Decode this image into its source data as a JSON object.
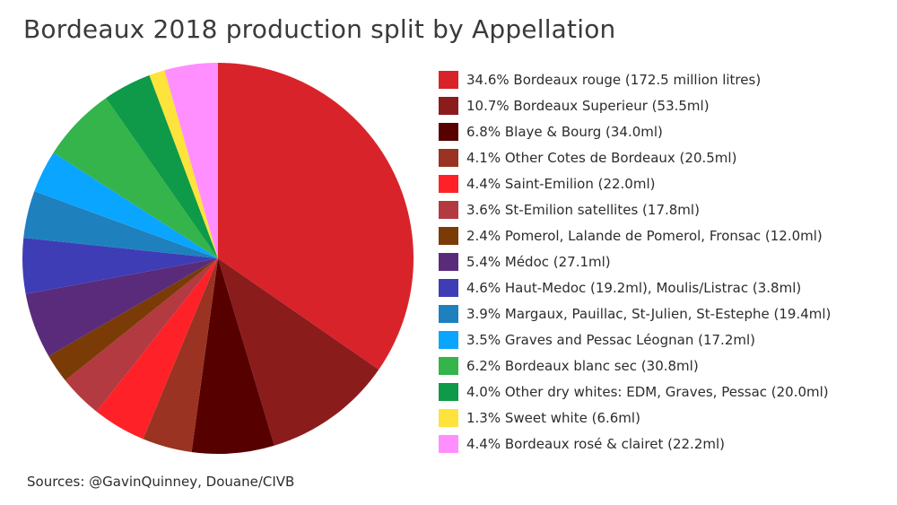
{
  "chart_data": {
    "type": "pie",
    "title": "Bordeaux 2018 production split by Appellation",
    "start_angle": "12 o'clock",
    "direction": "clockwise",
    "slices": [
      {
        "label": "34.6% Bordeaux rouge (172.5 million litres)",
        "value": 34.6,
        "color": "#d9232a"
      },
      {
        "label": "10.7% Bordeaux Superieur (53.5ml)",
        "value": 10.7,
        "color": "#8b1c1c"
      },
      {
        "label": "6.8% Blaye & Bourg (34.0ml)",
        "value": 6.8,
        "color": "#560000"
      },
      {
        "label": "4.1% Other Cotes de Bordeaux (20.5ml)",
        "value": 4.1,
        "color": "#9a3322"
      },
      {
        "label": "4.4% Saint-Emilion (22.0ml)",
        "value": 4.4,
        "color": "#ff2128"
      },
      {
        "label": "3.6% St-Emilion satellites (17.8ml)",
        "value": 3.6,
        "color": "#b33a40"
      },
      {
        "label": "2.4% Pomerol, Lalande de Pomerol, Fronsac (12.0ml)",
        "value": 2.4,
        "color": "#7a3b07"
      },
      {
        "label": "5.4% Médoc (27.1ml)",
        "value": 5.4,
        "color": "#5a2b7a"
      },
      {
        "label": "4.6% Haut-Medoc (19.2ml), Moulis/Listrac (3.8ml)",
        "value": 4.6,
        "color": "#3e3db5"
      },
      {
        "label": "3.9% Margaux, Pauillac, St-Julien, St-Estephe (19.4ml)",
        "value": 3.9,
        "color": "#1f80be"
      },
      {
        "label": "3.5% Graves and Pessac Léognan (17.2ml)",
        "value": 3.5,
        "color": "#0aa5ff"
      },
      {
        "label": "6.2% Bordeaux blanc sec (30.8ml)",
        "value": 6.2,
        "color": "#34b44a"
      },
      {
        "label": "4.0% Other dry whites: EDM, Graves, Pessac (20.0ml)",
        "value": 4.0,
        "color": "#0e9a48"
      },
      {
        "label": "1.3% Sweet white (6.6ml)",
        "value": 1.3,
        "color": "#fde33b"
      },
      {
        "label": "4.4% Bordeaux rosé & clairet (22.2ml)",
        "value": 4.4,
        "color": "#ff8eff"
      }
    ],
    "legend_position": "right"
  },
  "source": "Sources: @GavinQuinney, Douane/CIVB"
}
